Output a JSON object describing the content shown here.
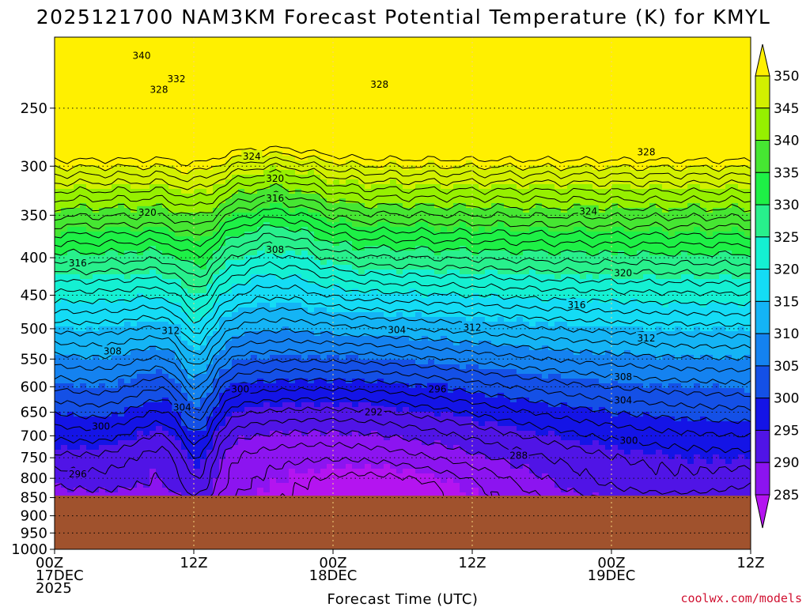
{
  "chart_data": {
    "type": "heatmap",
    "title": "2025121700 NAM3KM Forecast Potential Temperature (K) for KMYL",
    "xlabel": "Forecast Time (UTC)",
    "ylabel": "",
    "x_hours": [
      0,
      12,
      24,
      36,
      48,
      60
    ],
    "x_ticks": [
      {
        "hour": 0,
        "lines": [
          "00Z",
          "17DEC",
          "2025"
        ]
      },
      {
        "hour": 12,
        "lines": [
          "12Z"
        ]
      },
      {
        "hour": 24,
        "lines": [
          "00Z",
          "18DEC"
        ]
      },
      {
        "hour": 36,
        "lines": [
          "12Z"
        ]
      },
      {
        "hour": 48,
        "lines": [
          "00Z",
          "19DEC"
        ]
      },
      {
        "hour": 60,
        "lines": [
          "12Z"
        ]
      }
    ],
    "y_ticks_hpa": [
      "250",
      "300",
      "350",
      "400",
      "450",
      "500",
      "550",
      "600",
      "650",
      "700",
      "750",
      "800",
      "850",
      "900",
      "950",
      "1000"
    ],
    "ylim_hpa": [
      1000,
      200
    ],
    "surface_pressure_hpa": 845,
    "hours_per_day": 24,
    "colorbar": {
      "ticks": [
        "350",
        "345",
        "340",
        "335",
        "330",
        "325",
        "320",
        "315",
        "310",
        "305",
        "300",
        "295",
        "290",
        "285"
      ],
      "colors": [
        "#fff000",
        "#d2f000",
        "#96f000",
        "#46e632",
        "#1ef046",
        "#28f08c",
        "#14f0d2",
        "#14dcf5",
        "#14b4f5",
        "#1482f0",
        "#1450e6",
        "#1414e6",
        "#5014e6",
        "#8c14f0",
        "#b414f0"
      ]
    },
    "ground_color": "#a0522d",
    "contour_labels": [
      {
        "text": "340",
        "hour": 7.5,
        "hpa": 212
      },
      {
        "text": "332",
        "hour": 10.5,
        "hpa": 228
      },
      {
        "text": "328",
        "hour": 9.0,
        "hpa": 236
      },
      {
        "text": "328",
        "hour": 28.0,
        "hpa": 232
      },
      {
        "text": "328",
        "hour": 51.0,
        "hpa": 287
      },
      {
        "text": "324",
        "hour": 17.0,
        "hpa": 291
      },
      {
        "text": "324",
        "hour": 46.0,
        "hpa": 346
      },
      {
        "text": "320",
        "hour": 19.0,
        "hpa": 312
      },
      {
        "text": "320",
        "hour": 8.0,
        "hpa": 347
      },
      {
        "text": "320",
        "hour": 49.0,
        "hpa": 420
      },
      {
        "text": "316",
        "hour": 19.0,
        "hpa": 332
      },
      {
        "text": "316",
        "hour": 2.0,
        "hpa": 407
      },
      {
        "text": "316",
        "hour": 45.0,
        "hpa": 464
      },
      {
        "text": "312",
        "hour": 10.0,
        "hpa": 503
      },
      {
        "text": "312",
        "hour": 36.0,
        "hpa": 498
      },
      {
        "text": "312",
        "hour": 51.0,
        "hpa": 515
      },
      {
        "text": "308",
        "hour": 19.0,
        "hpa": 390
      },
      {
        "text": "308",
        "hour": 5.0,
        "hpa": 537
      },
      {
        "text": "308",
        "hour": 49.0,
        "hpa": 582
      },
      {
        "text": "304",
        "hour": 29.5,
        "hpa": 502
      },
      {
        "text": "304",
        "hour": 11.0,
        "hpa": 640
      },
      {
        "text": "304",
        "hour": 49.0,
        "hpa": 626
      },
      {
        "text": "300",
        "hour": 16.0,
        "hpa": 605
      },
      {
        "text": "300",
        "hour": 4.0,
        "hpa": 680
      },
      {
        "text": "300",
        "hour": 49.5,
        "hpa": 711
      },
      {
        "text": "296",
        "hour": 33.0,
        "hpa": 605
      },
      {
        "text": "296",
        "hour": 2.0,
        "hpa": 790
      },
      {
        "text": "292",
        "hour": 27.5,
        "hpa": 650
      },
      {
        "text": "288",
        "hour": 40.0,
        "hpa": 745
      }
    ]
  },
  "credit": "coolwx.com/models"
}
